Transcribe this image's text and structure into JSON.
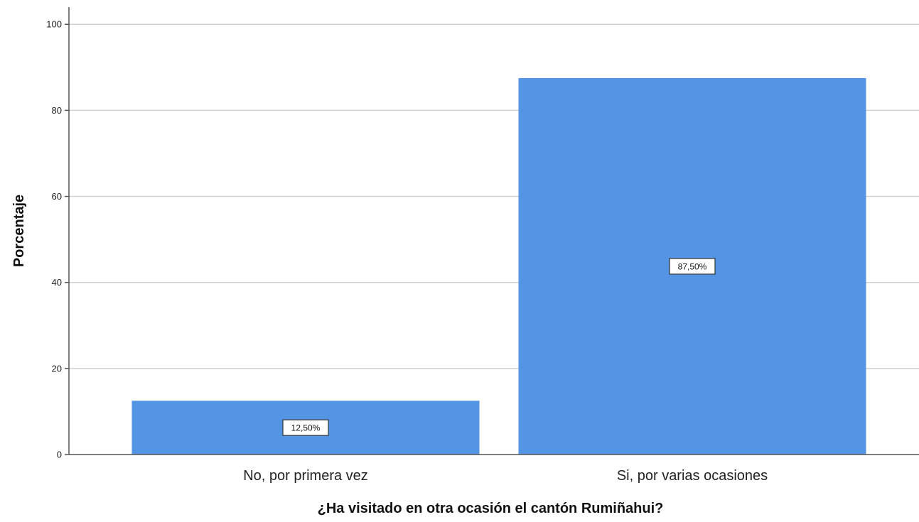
{
  "chart_data": {
    "type": "bar",
    "categories": [
      "No, por primera vez",
      "Si, por varias ocasiones"
    ],
    "values": [
      12.5,
      87.5
    ],
    "data_labels": [
      "12,50%",
      "87,50%"
    ],
    "title": "",
    "xlabel": "¿Ha visitado en otra ocasión el cantón Rumiñahui?",
    "ylabel": "Porcentaje",
    "ylim": [
      0,
      104
    ],
    "yticks": [
      0,
      20,
      40,
      60,
      80,
      100
    ],
    "ytick_labels": [
      "0",
      "20",
      "40",
      "60",
      "80",
      "100"
    ],
    "grid": true,
    "legend": "none",
    "bar_color": "#5494e4",
    "grid_color": "#d0d0d0",
    "axis_color": "#555555"
  }
}
